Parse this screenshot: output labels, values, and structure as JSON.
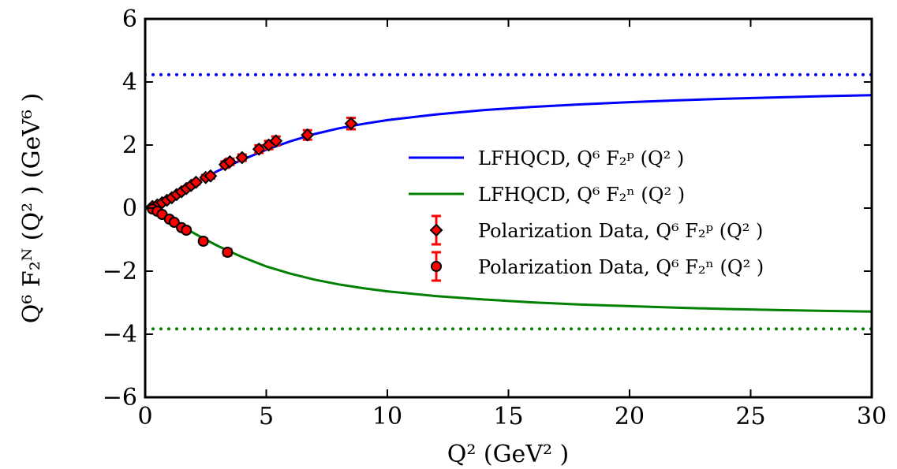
{
  "chart_data": {
    "type": "line",
    "xlabel": "Q² (GeV² )",
    "ylabel": "Q⁶ F₂ᴺ (Q² ) (GeV⁶ )",
    "xlim": [
      0,
      30
    ],
    "ylim": [
      -6,
      6
    ],
    "x_ticks": [
      "0",
      "5",
      "10",
      "15",
      "20",
      "25",
      "30"
    ],
    "y_ticks": [
      "−6",
      "−4",
      "−2",
      "0",
      "2",
      "4",
      "6"
    ],
    "grid": false,
    "legend_position": "right",
    "series": [
      {
        "name": "LFHQCD, Q⁶ F₂ᵖ (Q² )",
        "kind": "line",
        "color": "#0000ff",
        "x": [
          0,
          0.5,
          1,
          1.5,
          2,
          2.5,
          3,
          3.5,
          4,
          5,
          6,
          7,
          8,
          9,
          10,
          12,
          14,
          16,
          18,
          20,
          22,
          24,
          26,
          28,
          30
        ],
        "y": [
          0,
          0.13,
          0.33,
          0.55,
          0.77,
          0.98,
          1.18,
          1.36,
          1.53,
          1.85,
          2.12,
          2.35,
          2.53,
          2.67,
          2.79,
          2.97,
          3.11,
          3.21,
          3.29,
          3.36,
          3.42,
          3.47,
          3.51,
          3.55,
          3.58
        ]
      },
      {
        "name": "LFHQCD, Q⁶ F₂ⁿ (Q² )",
        "kind": "line",
        "color": "#008000",
        "x": [
          0,
          0.5,
          1,
          1.5,
          2,
          2.5,
          3,
          3.5,
          4,
          5,
          6,
          7,
          8,
          9,
          10,
          12,
          14,
          16,
          18,
          20,
          22,
          24,
          26,
          28,
          30
        ],
        "y": [
          0,
          -0.15,
          -0.35,
          -0.57,
          -0.79,
          -1.0,
          -1.2,
          -1.38,
          -1.55,
          -1.85,
          -2.08,
          -2.27,
          -2.42,
          -2.54,
          -2.64,
          -2.79,
          -2.9,
          -2.99,
          -3.06,
          -3.11,
          -3.16,
          -3.2,
          -3.23,
          -3.26,
          -3.28
        ]
      },
      {
        "name": "Polarization Data, Q⁶ F₂ᵖ (Q² )",
        "kind": "points",
        "marker": "diamond",
        "color": "#ff0000",
        "x": [
          0.3,
          0.5,
          0.7,
          0.9,
          1.1,
          1.3,
          1.5,
          1.7,
          1.9,
          2.1,
          2.5,
          2.7,
          3.3,
          3.5,
          4.0,
          4.7,
          5.1,
          5.4,
          6.7,
          8.5
        ],
        "y": [
          0.05,
          0.1,
          0.17,
          0.25,
          0.33,
          0.43,
          0.52,
          0.62,
          0.72,
          0.82,
          0.97,
          1.02,
          1.38,
          1.47,
          1.6,
          1.87,
          2.0,
          2.13,
          2.32,
          2.68
        ],
        "err": [
          0.03,
          0.03,
          0.04,
          0.04,
          0.05,
          0.05,
          0.05,
          0.06,
          0.06,
          0.07,
          0.08,
          0.08,
          0.1,
          0.1,
          0.1,
          0.12,
          0.13,
          0.14,
          0.15,
          0.18
        ]
      },
      {
        "name": "Polarization Data, Q⁶ F₂ⁿ (Q² )",
        "kind": "points",
        "marker": "circle",
        "color": "#ff0000",
        "x": [
          0.3,
          0.5,
          0.7,
          1.0,
          1.2,
          1.5,
          1.7,
          2.4,
          3.4
        ],
        "y": [
          -0.03,
          -0.1,
          -0.2,
          -0.35,
          -0.45,
          -0.62,
          -0.7,
          -1.05,
          -1.4
        ],
        "err": [
          0.03,
          0.03,
          0.04,
          0.05,
          0.05,
          0.06,
          0.07,
          0.08,
          0.1
        ]
      },
      {
        "name": "",
        "kind": "dotted",
        "color": "#0000ff",
        "x": [
          0,
          30
        ],
        "y": [
          4.23,
          4.23
        ]
      },
      {
        "name": "",
        "kind": "dotted",
        "color": "#008000",
        "x": [
          0,
          30
        ],
        "y": [
          -3.83,
          -3.83
        ]
      }
    ]
  }
}
